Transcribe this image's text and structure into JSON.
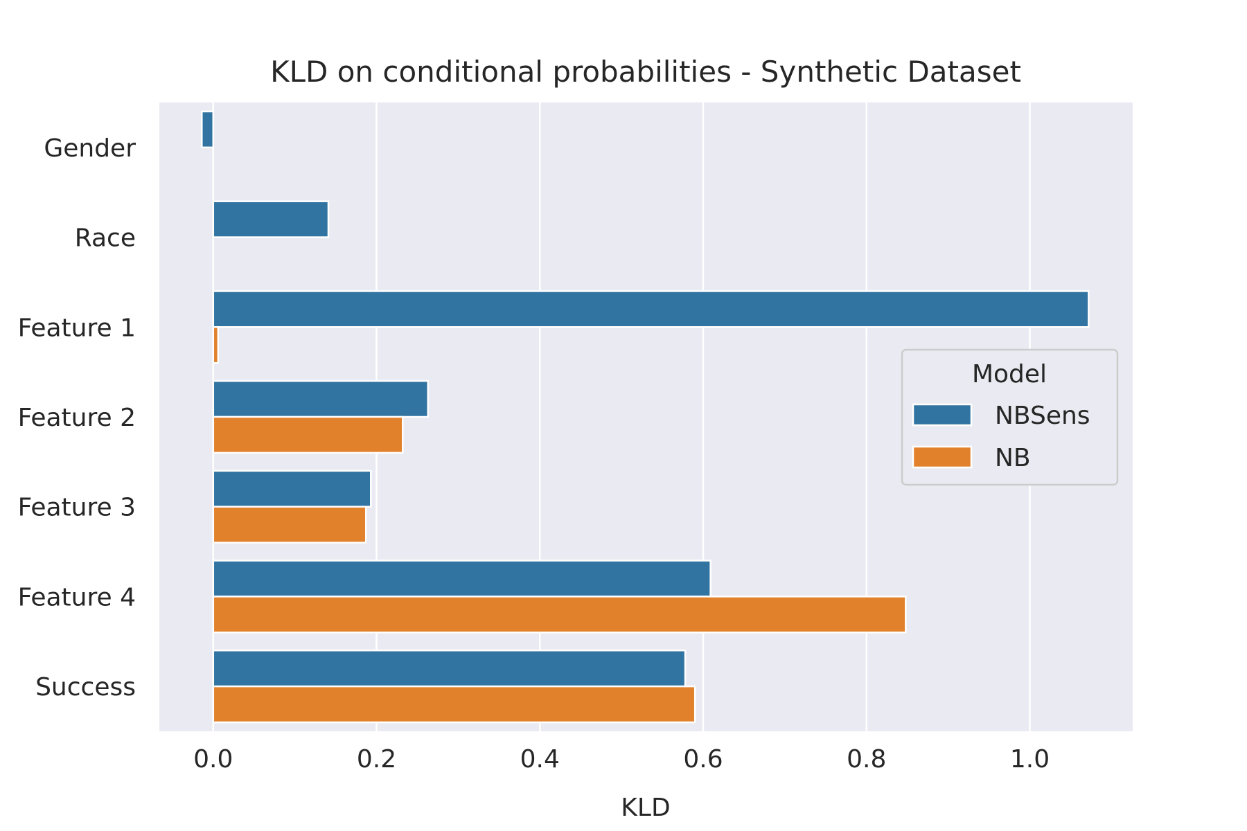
{
  "chart_data": {
    "type": "bar",
    "orientation": "horizontal",
    "title": "KLD on conditional probabilities - Synthetic Dataset",
    "xlabel": "KLD",
    "ylabel": "",
    "categories": [
      "Gender",
      "Race",
      "Feature 1",
      "Feature 2",
      "Feature 3",
      "Feature 4",
      "Success"
    ],
    "series": [
      {
        "name": "NBSens",
        "color": "#3274a1",
        "values": [
          -0.014,
          0.141,
          1.072,
          0.263,
          0.193,
          0.609,
          0.578
        ]
      },
      {
        "name": "NB",
        "color": "#e1812c",
        "values": [
          0.0,
          0.0,
          0.006,
          0.232,
          0.187,
          0.848,
          0.59
        ]
      }
    ],
    "xlim": [
      -0.066,
      1.126
    ],
    "xticks": [
      "0.0",
      "0.2",
      "0.4",
      "0.6",
      "0.8",
      "1.0"
    ],
    "xtick_values": [
      0.0,
      0.2,
      0.4,
      0.6,
      0.8,
      1.0
    ],
    "grid": true,
    "legend": {
      "title": "Model",
      "position": "center-right"
    },
    "colors": {
      "plot_background": "#eaeaf2",
      "grid": "#ffffff"
    }
  }
}
